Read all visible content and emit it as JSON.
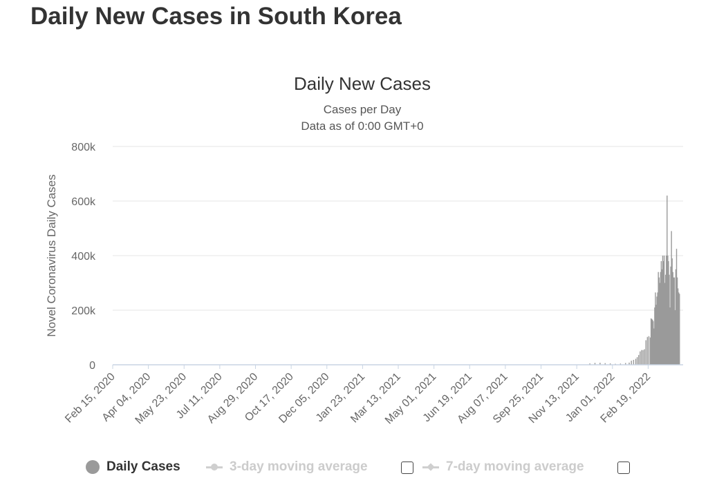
{
  "page": {
    "title": "Daily New Cases in South Korea"
  },
  "legend": {
    "daily_label": "Daily Cases",
    "ma3_label": "3-day moving average",
    "ma7_label": "7-day moving average"
  },
  "colors": {
    "bars": "#9a9a9a",
    "grid": "#e6e6e6",
    "axis": "#c8d4e3",
    "text": "#333333",
    "muted": "#666666",
    "legend_inactive": "#cccccc"
  },
  "chart_data": {
    "type": "bar",
    "title": "Daily New Cases",
    "subtitle": [
      "Cases per Day",
      "Data as of 0:00 GMT+0"
    ],
    "ylabel": "Novel Coronavirus Daily Cases",
    "xlabel": "",
    "ylim": [
      0,
      800000
    ],
    "yticks": [
      0,
      200000,
      400000,
      600000,
      800000
    ],
    "ytick_labels": [
      "0",
      "200k",
      "400k",
      "600k",
      "800k"
    ],
    "xlim": [
      "2020-02-15",
      "2022-04-08"
    ],
    "xtick_labels": [
      "Feb 15, 2020",
      "Apr 04, 2020",
      "May 23, 2020",
      "Jul 11, 2020",
      "Aug 29, 2020",
      "Oct 17, 2020",
      "Dec 05, 2020",
      "Jan 23, 2021",
      "Mar 13, 2021",
      "May 01, 2021",
      "Jun 19, 2021",
      "Aug 07, 2021",
      "Sep 25, 2021",
      "Nov 13, 2021",
      "Jan 01, 2022",
      "Feb 19, 2022"
    ],
    "grid": true,
    "legend_position": "bottom",
    "series": [
      {
        "name": "Daily Cases",
        "points": [
          [
            "2021-12-01",
            5000
          ],
          [
            "2021-12-08",
            7000
          ],
          [
            "2021-12-15",
            7500
          ],
          [
            "2021-12-22",
            6000
          ],
          [
            "2021-12-29",
            5000
          ],
          [
            "2022-01-05",
            3500
          ],
          [
            "2022-01-12",
            4500
          ],
          [
            "2022-01-19",
            6500
          ],
          [
            "2022-01-24",
            8000
          ],
          [
            "2022-01-27",
            15000
          ],
          [
            "2022-01-30",
            18000
          ],
          [
            "2022-02-02",
            22000
          ],
          [
            "2022-02-04",
            28000
          ],
          [
            "2022-02-06",
            36000
          ],
          [
            "2022-02-08",
            49000
          ],
          [
            "2022-02-10",
            54000
          ],
          [
            "2022-02-12",
            54000
          ],
          [
            "2022-02-14",
            57000
          ],
          [
            "2022-02-16",
            90000
          ],
          [
            "2022-02-18",
            102000
          ],
          [
            "2022-02-20",
            105000
          ],
          [
            "2022-02-22",
            100000
          ],
          [
            "2022-02-23",
            170000
          ],
          [
            "2022-02-24",
            168000
          ],
          [
            "2022-02-25",
            165000
          ],
          [
            "2022-02-26",
            160000
          ],
          [
            "2022-02-27",
            133000
          ],
          [
            "2022-02-28",
            210000
          ],
          [
            "2022-03-01",
            265000
          ],
          [
            "2022-03-02",
            220000
          ],
          [
            "2022-03-03",
            250000
          ],
          [
            "2022-03-04",
            265000
          ],
          [
            "2022-03-05",
            340000
          ],
          [
            "2022-03-06",
            320000
          ],
          [
            "2022-03-07",
            300000
          ],
          [
            "2022-03-08",
            340000
          ],
          [
            "2022-03-09",
            380000
          ],
          [
            "2022-03-10",
            350000
          ],
          [
            "2022-03-11",
            400000
          ],
          [
            "2022-03-12",
            380000
          ],
          [
            "2022-03-13",
            400000
          ],
          [
            "2022-03-14",
            300000
          ],
          [
            "2022-03-15",
            330000
          ],
          [
            "2022-03-16",
            400000
          ],
          [
            "2022-03-17",
            620000
          ],
          [
            "2022-03-18",
            400000
          ],
          [
            "2022-03-19",
            380000
          ],
          [
            "2022-03-20",
            330000
          ],
          [
            "2022-03-21",
            210000
          ],
          [
            "2022-03-22",
            360000
          ],
          [
            "2022-03-23",
            490000
          ],
          [
            "2022-03-24",
            390000
          ],
          [
            "2022-03-25",
            340000
          ],
          [
            "2022-03-26",
            320000
          ],
          [
            "2022-03-27",
            320000
          ],
          [
            "2022-03-28",
            200000
          ],
          [
            "2022-03-29",
            350000
          ],
          [
            "2022-03-30",
            425000
          ],
          [
            "2022-03-31",
            320000
          ],
          [
            "2022-04-01",
            280000
          ],
          [
            "2022-04-02",
            265000
          ],
          [
            "2022-04-03",
            260000
          ]
        ]
      }
    ]
  }
}
